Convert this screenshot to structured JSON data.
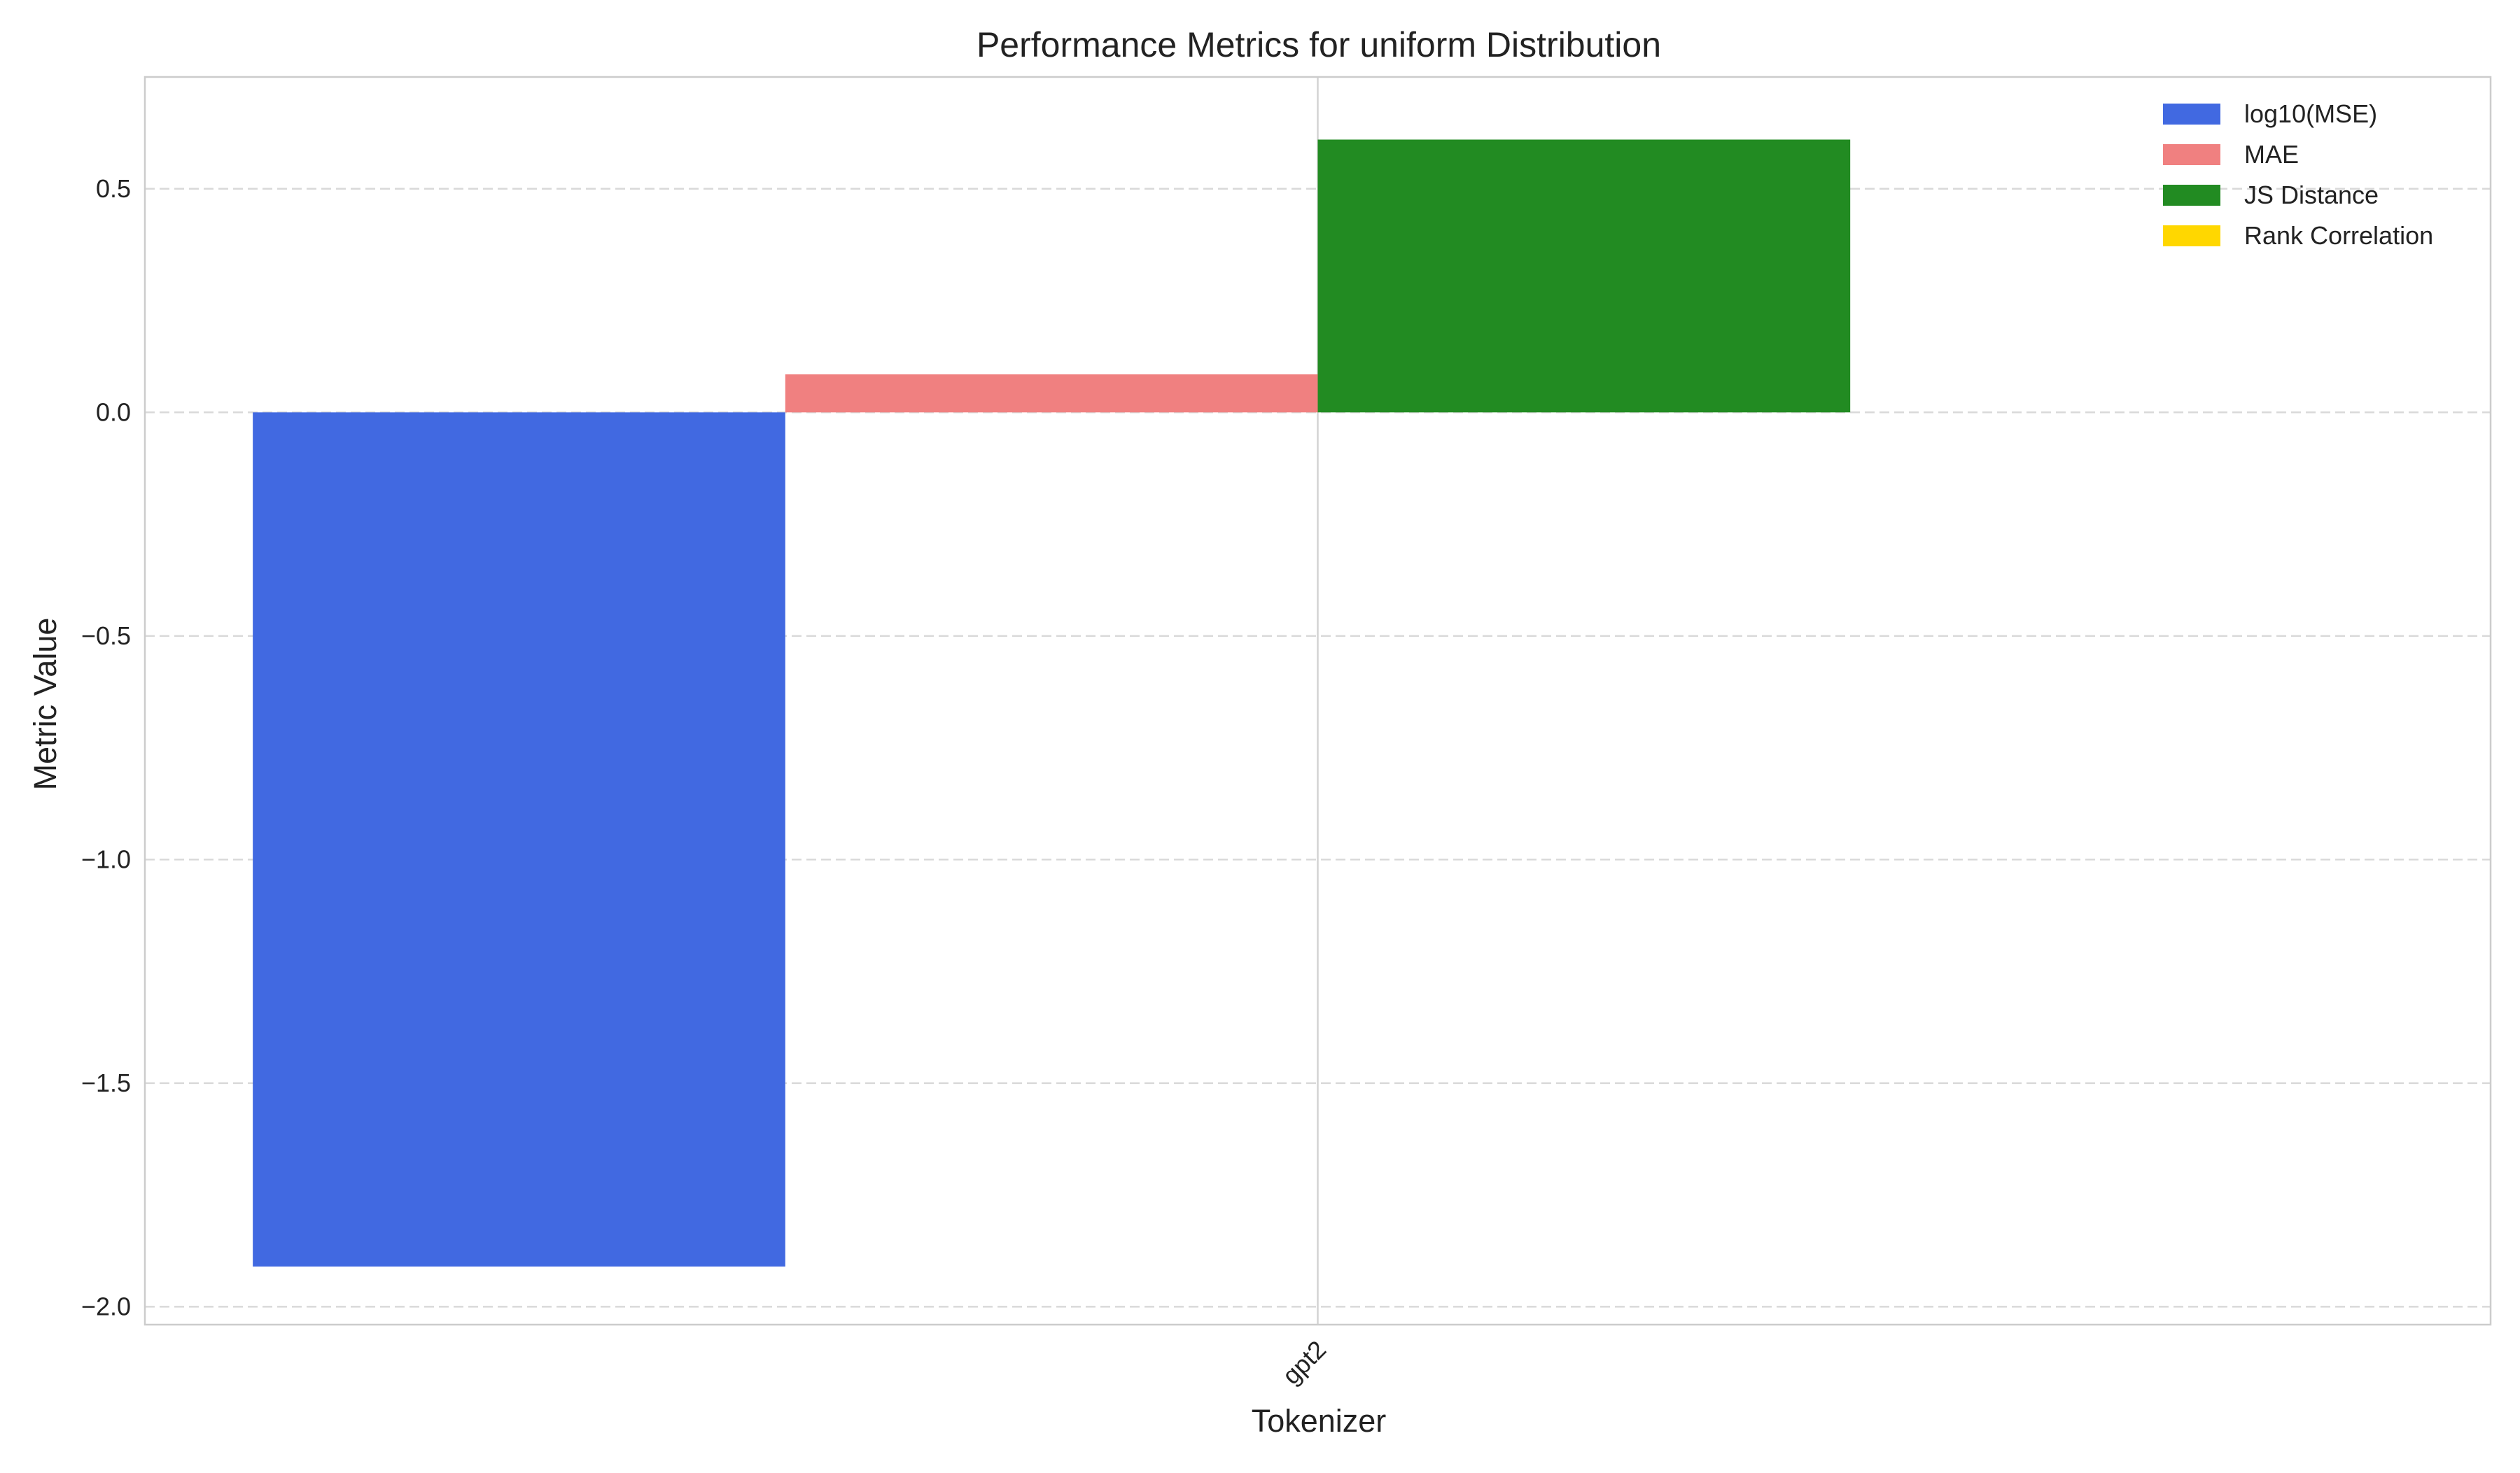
{
  "chart_data": {
    "type": "bar",
    "title": "Performance Metrics for uniform Distribution",
    "xlabel": "Tokenizer",
    "ylabel": "Metric Value",
    "categories": [
      "gpt2"
    ],
    "ylim": [
      -2.04,
      0.75
    ],
    "yticks": [
      -2.0,
      -1.5,
      -1.0,
      -0.5,
      0.0,
      0.5
    ],
    "ytick_labels": [
      "−2.0",
      "−1.5",
      "−1.0",
      "−0.5",
      "0.0",
      "0.5"
    ],
    "grid": true,
    "legend_position": "top-right",
    "series": [
      {
        "name": "log10(MSE)",
        "color": "#4169e1",
        "values": [
          -1.91
        ]
      },
      {
        "name": "MAE",
        "color": "#f08080",
        "values": [
          0.085
        ]
      },
      {
        "name": "JS Distance",
        "color": "#228b22",
        "values": [
          0.61
        ]
      },
      {
        "name": "Rank Correlation",
        "color": "#ffd700",
        "values": [
          0.0
        ]
      }
    ]
  }
}
